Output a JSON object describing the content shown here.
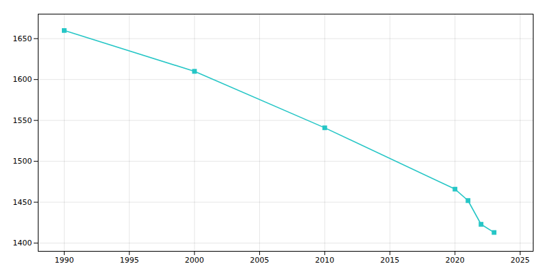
{
  "chart_data": {
    "type": "line",
    "x": [
      1990,
      2000,
      2010,
      2020,
      2021,
      2022,
      2023
    ],
    "values": [
      1660,
      1610,
      1541,
      1466,
      1452,
      1423,
      1413
    ],
    "color": "#26c6c6",
    "marker": "square",
    "xlim": [
      1988,
      2026
    ],
    "ylim": [
      1390,
      1680
    ],
    "xticks": [
      1990,
      1995,
      2000,
      2005,
      2010,
      2015,
      2020,
      2025
    ],
    "yticks": [
      1400,
      1450,
      1500,
      1550,
      1600,
      1650
    ],
    "grid": true
  }
}
